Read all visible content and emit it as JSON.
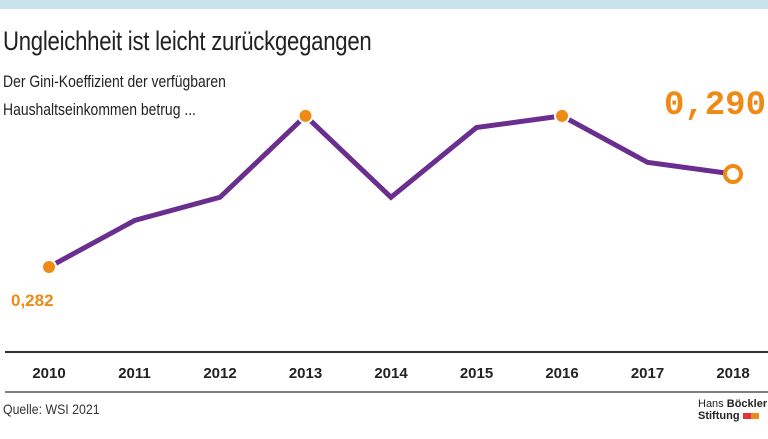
{
  "title": "Ungleichheit ist leicht zurückgegangen",
  "subtitle_lines": [
    "Der Gini-Koeffizient der verfügbaren",
    "Haushaltseinkommen betrug ..."
  ],
  "source": "Quelle: WSI 2021",
  "logo": {
    "line1_a": "Hans",
    "line1_b": "Böckler",
    "line2": "Stiftung"
  },
  "colors": {
    "line": "#6a2f8e",
    "accent": "#ef8a14",
    "axis": "#333333",
    "topbar": "#c9e3ec"
  },
  "chart_data": {
    "type": "line",
    "categories": [
      "2010",
      "2011",
      "2012",
      "2013",
      "2014",
      "2015",
      "2016",
      "2017",
      "2018"
    ],
    "values": [
      0.282,
      0.286,
      0.288,
      0.295,
      0.288,
      0.294,
      0.295,
      0.291,
      0.29
    ],
    "markers": {
      "filled": [
        "2010",
        "2013",
        "2016"
      ],
      "hollow": [
        "2018"
      ]
    },
    "data_labels": [
      {
        "category": "2010",
        "text": "0,282"
      },
      {
        "category": "2018",
        "text": "0,290"
      }
    ],
    "ylim": [
      0.275,
      0.3
    ],
    "grid": false,
    "legend": "none"
  }
}
